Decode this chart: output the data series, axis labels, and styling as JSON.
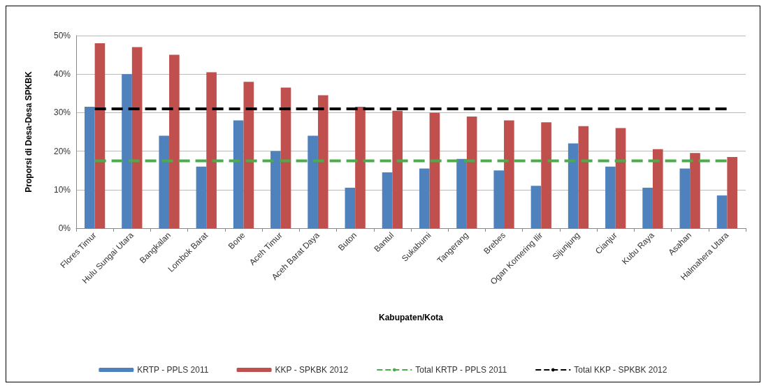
{
  "chart_data": {
    "type": "bar",
    "xlabel": "Kabupaten/Kota",
    "ylabel": "Proporsi di Desa-Desa SPKBK",
    "categories": [
      "Flores Timur",
      "Hulu Sungai Utara",
      "Bangkalan",
      "Lombok Barat",
      "Bone",
      "Aceh Timur",
      "Aceh Barat Daya",
      "Buton",
      "Bantul",
      "Sukabumi",
      "Tangerang",
      "Brebes",
      "Ogan Komering Ilir",
      "Sijunjung",
      "Cianjur",
      "Kubu Raya",
      "Asahan",
      "Halmahera Utara"
    ],
    "series": [
      {
        "name": "KRTP - PPLS 2011",
        "color": "#4f81bd",
        "values": [
          31.5,
          40,
          24,
          16,
          28,
          20,
          24,
          10.5,
          14.5,
          15.5,
          18,
          15,
          11,
          22,
          16,
          10.5,
          15.5,
          8.5
        ]
      },
      {
        "name": "KKP - SPKBK 2012",
        "color": "#c0504d",
        "values": [
          48,
          47,
          45,
          40.5,
          38,
          36.5,
          34.5,
          31.5,
          30.5,
          30,
          29,
          28,
          27.5,
          26.5,
          26,
          20.5,
          19.5,
          18.5
        ]
      },
      {
        "name": "Total KRTP - PPLS 2011",
        "type": "line",
        "line_style": "dashed",
        "color": "#4aac4a",
        "values": [
          17.5,
          17.5,
          17.5,
          17.5,
          17.5,
          17.5,
          17.5,
          17.5,
          17.5,
          17.5,
          17.5,
          17.5,
          17.5,
          17.5,
          17.5,
          17.5,
          17.5,
          17.5
        ]
      },
      {
        "name": "Total KKP - SPKBK 2012",
        "type": "line",
        "line_style": "dashed",
        "color": "#000000",
        "values": [
          31,
          31,
          31,
          31,
          31,
          31,
          31,
          31,
          31,
          31,
          31,
          31,
          31,
          31,
          31,
          31,
          31,
          31
        ]
      }
    ],
    "ylim": [
      0,
      50
    ],
    "yticks": [
      {
        "value": 0,
        "label": "0%"
      },
      {
        "value": 10,
        "label": "10%"
      },
      {
        "value": 20,
        "label": "20%"
      },
      {
        "value": 30,
        "label": "30%"
      },
      {
        "value": 40,
        "label": "40%"
      },
      {
        "value": 50,
        "label": "50%"
      }
    ],
    "grid": "y",
    "legend": "bottom",
    "marker": "none"
  }
}
